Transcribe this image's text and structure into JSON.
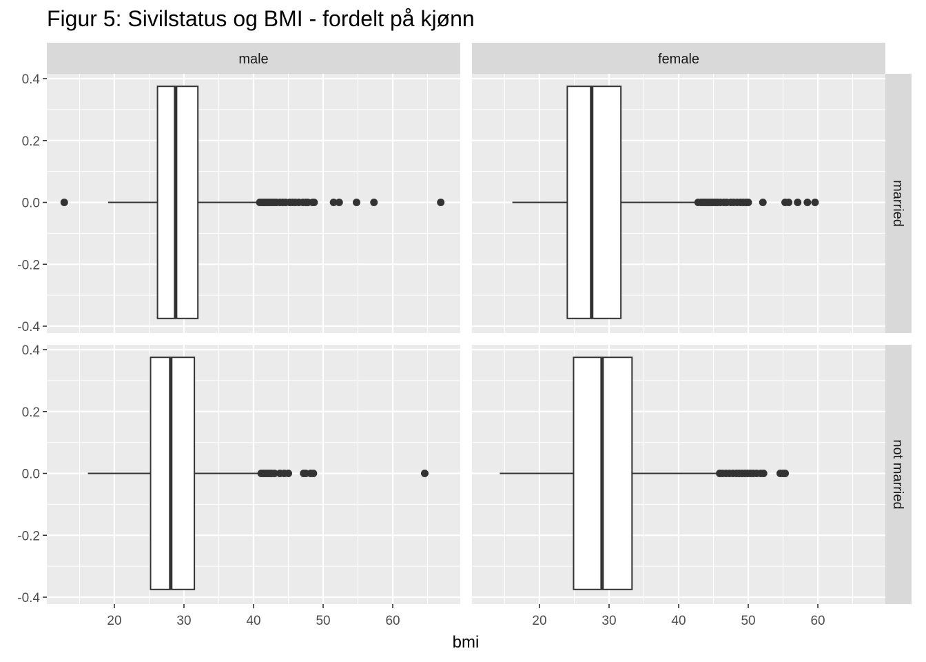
{
  "chart_data": {
    "type": "boxplot",
    "title": "Figur 5: Sivilstatus og BMI - fordelt på kjønn",
    "xlabel": "bmi",
    "ylabel": "",
    "x_ticks": [
      20,
      30,
      40,
      50,
      60
    ],
    "y_ticks": [
      0.4,
      0.2,
      0.0,
      -0.2,
      -0.4
    ],
    "y_tick_labels": [
      "0.4",
      "0.2",
      "0.0",
      "-0.2",
      "-0.4"
    ],
    "x_tick_labels": [
      "20",
      "30",
      "40",
      "50",
      "60"
    ],
    "xlim": [
      10.3,
      69.7
    ],
    "ylim": [
      -0.4,
      0.4
    ],
    "grid": true,
    "col_facets": [
      "male",
      "female"
    ],
    "row_facets": [
      "married",
      "not married"
    ],
    "panels": [
      {
        "col": "male",
        "row": "married",
        "whisker_low": 19.1,
        "q1": 26.2,
        "median": 28.8,
        "q3": 32.0,
        "whisker_high": 40.7,
        "outliers": [
          12.8,
          40.9,
          41.2,
          41.5,
          41.8,
          42.1,
          42.4,
          42.7,
          43.0,
          43.3,
          43.8,
          44.2,
          44.6,
          45.2,
          45.6,
          46.0,
          46.5,
          47.1,
          47.5,
          47.8,
          48.5,
          48.7,
          51.5,
          52.3,
          54.8,
          57.3,
          66.9
        ]
      },
      {
        "col": "female",
        "row": "married",
        "whisker_low": 16.1,
        "q1": 24.0,
        "median": 27.5,
        "q3": 31.7,
        "whisker_high": 43.0,
        "outliers": [
          42.8,
          43.2,
          43.5,
          43.8,
          44.1,
          44.4,
          44.7,
          45.0,
          45.3,
          45.6,
          46.0,
          46.5,
          46.9,
          47.5,
          47.9,
          48.4,
          48.9,
          49.3,
          49.7,
          50.0,
          52.1,
          55.3,
          55.8,
          57.1,
          58.5,
          59.6
        ]
      },
      {
        "col": "male",
        "row": "not married",
        "whisker_low": 16.2,
        "q1": 25.2,
        "median": 28.1,
        "q3": 31.5,
        "whisker_high": 41.0,
        "outliers": [
          41.1,
          41.4,
          41.7,
          42.0,
          42.3,
          42.6,
          43.0,
          43.8,
          44.4,
          45.0,
          47.2,
          47.5,
          48.2,
          48.6,
          64.6
        ]
      },
      {
        "col": "female",
        "row": "not married",
        "whisker_low": 14.3,
        "q1": 24.9,
        "median": 29.0,
        "q3": 33.3,
        "whisker_high": 45.8,
        "outliers": [
          45.9,
          46.3,
          46.8,
          47.3,
          47.8,
          48.3,
          48.7,
          49.1,
          49.5,
          49.9,
          50.3,
          50.7,
          51.2,
          51.8,
          52.2,
          54.6,
          55.0,
          55.3
        ]
      }
    ]
  },
  "colors": {
    "panel_bg": "#ebebeb",
    "grid_major": "#ffffff",
    "strip_bg": "#d9d9d9",
    "box_fill": "#ffffff",
    "box_stroke": "#333333",
    "outlier": "#333333",
    "tick_text": "#4d4d4d"
  }
}
